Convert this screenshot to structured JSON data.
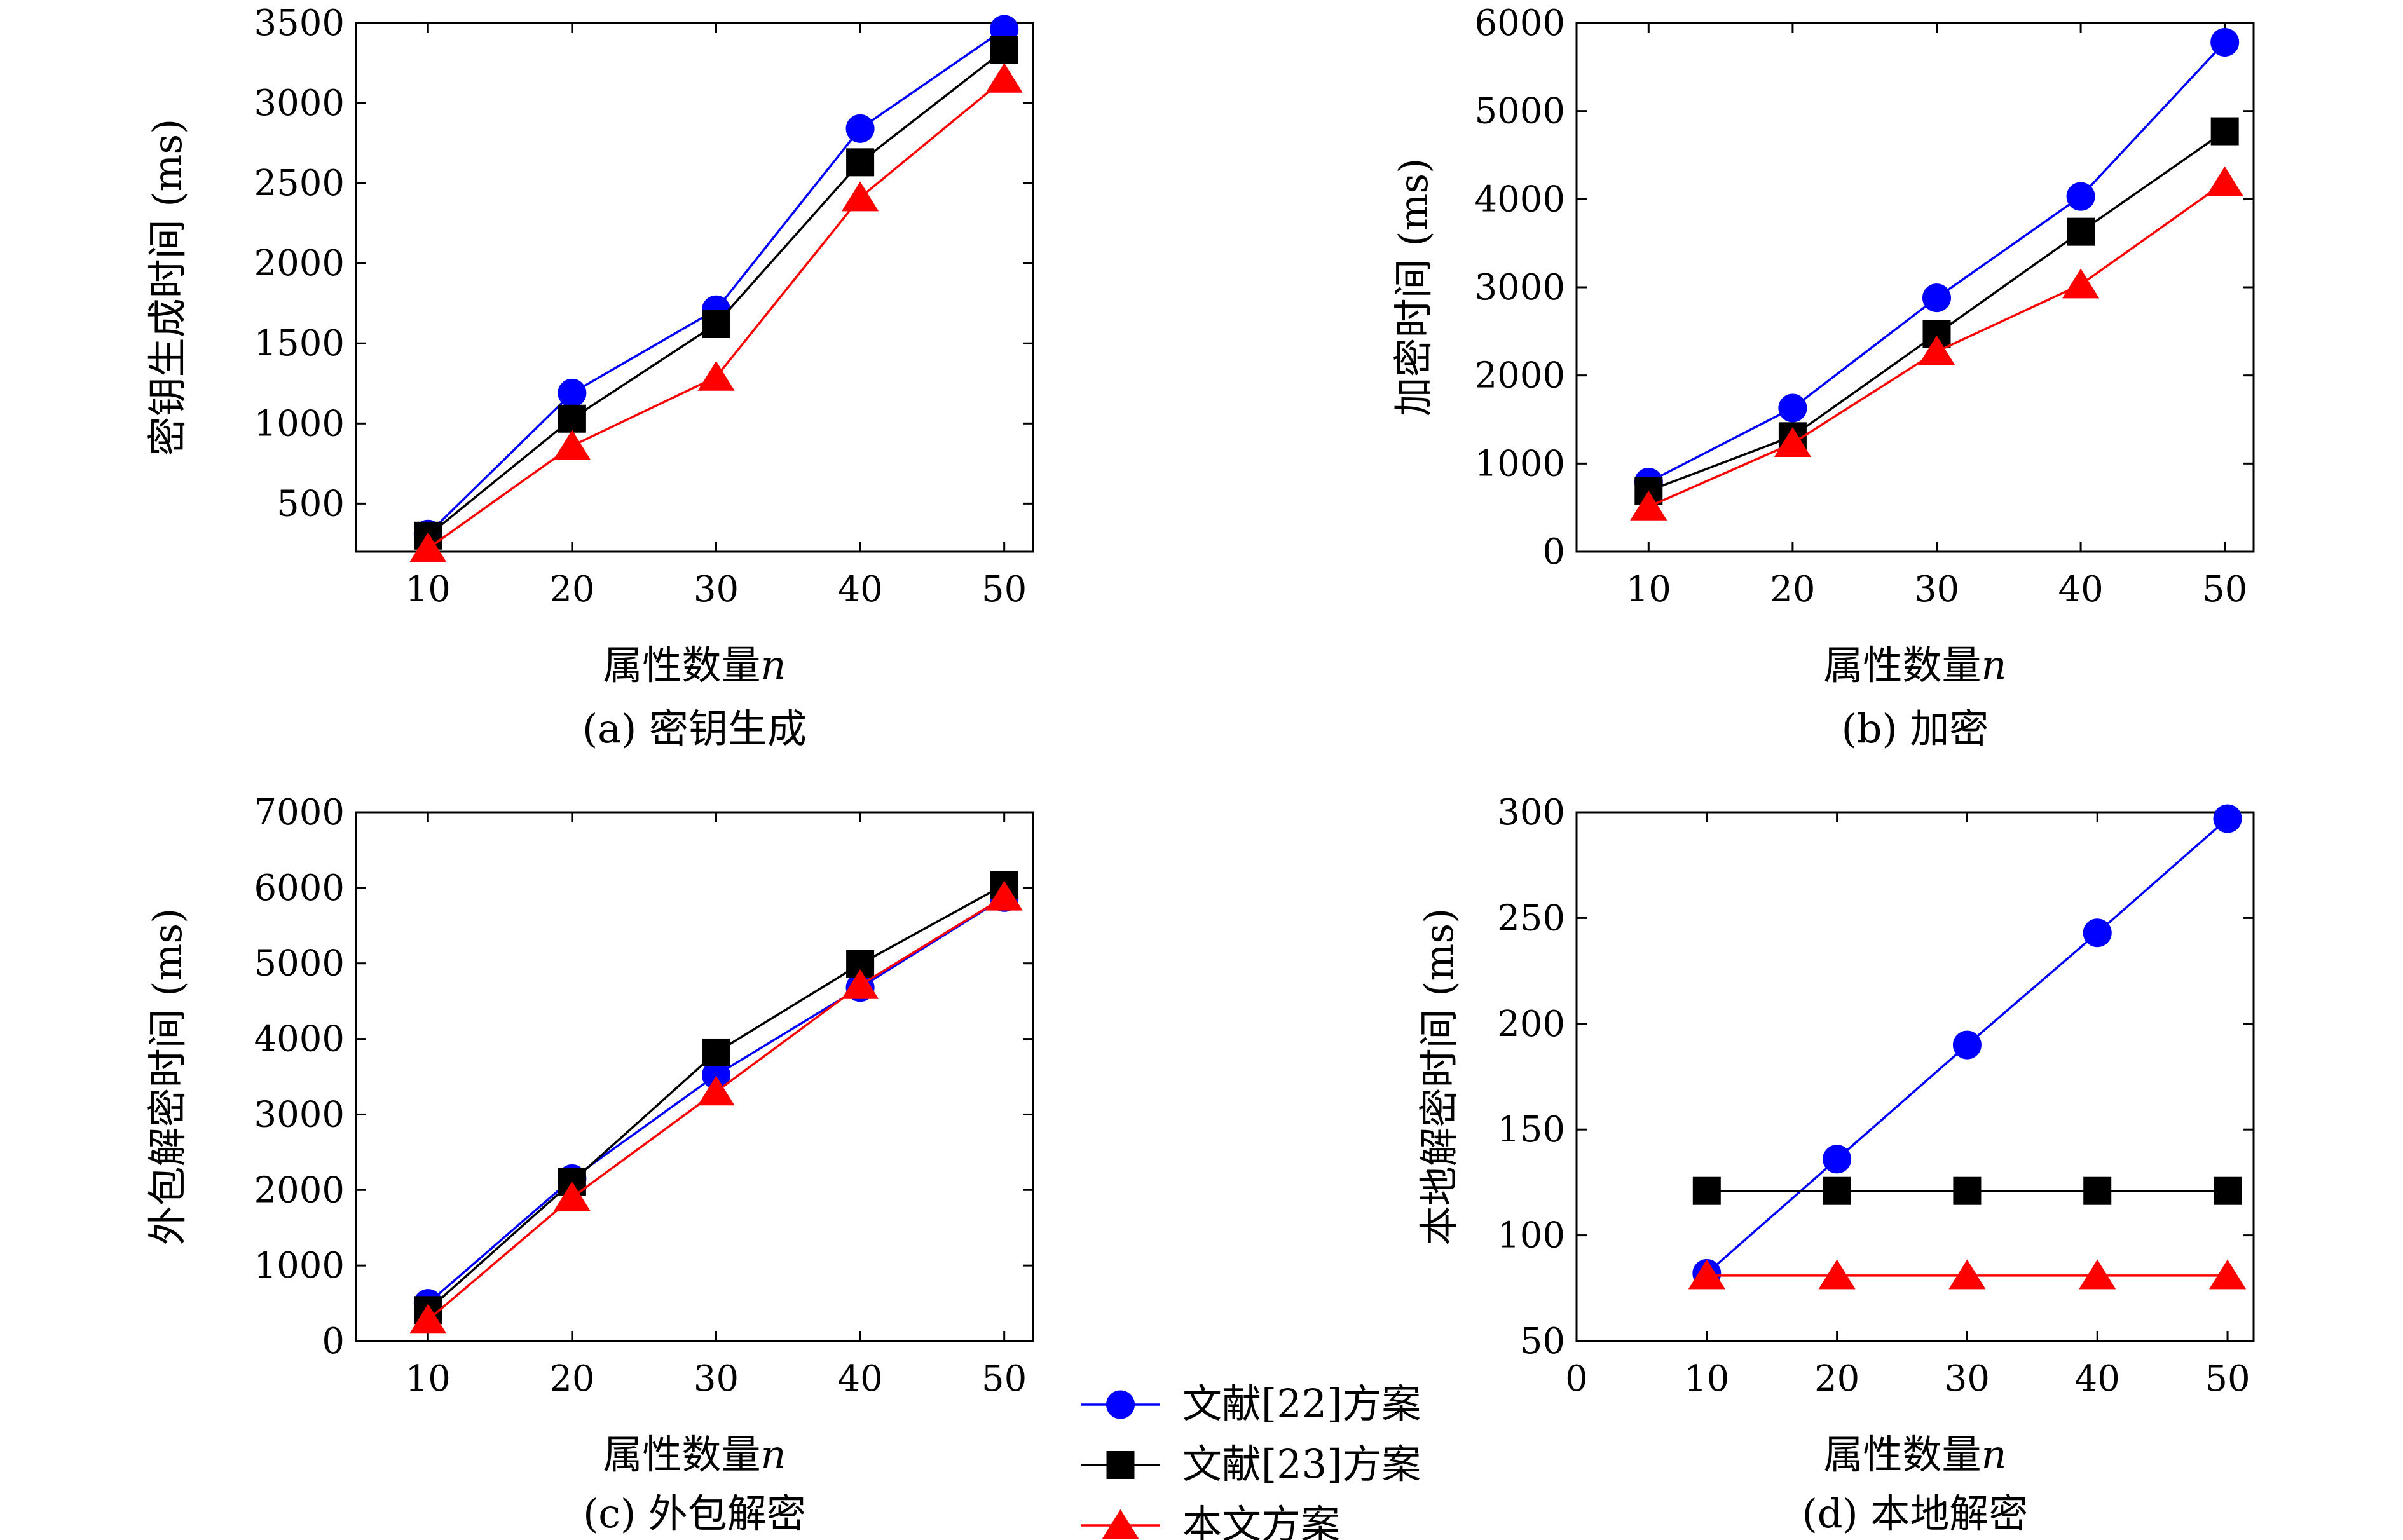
{
  "colors": {
    "series_blue": "#0000ff",
    "series_black": "#000000",
    "series_red": "#ff0000",
    "axis": "#000000"
  },
  "legend": {
    "items": [
      {
        "label": "文献[22]方案",
        "color": "#0000ff",
        "marker": "circle"
      },
      {
        "label": "文献[23]方案",
        "color": "#000000",
        "marker": "square"
      },
      {
        "label": "本文方案",
        "color": "#ff0000",
        "marker": "triangle"
      }
    ]
  },
  "chart_data": [
    {
      "type": "line",
      "caption": "(a) 密钥生成",
      "xlabel": "属性数量",
      "xlabel_var": "n",
      "ylabel": "密钥生成时间 (ms)",
      "xlim": [
        5,
        52
      ],
      "ylim": [
        200,
        3500
      ],
      "xticks": [
        10,
        20,
        30,
        40,
        50
      ],
      "yticks": [
        500,
        1000,
        1500,
        2000,
        2500,
        3000,
        3500
      ],
      "series": [
        {
          "name": "文献[22]方案",
          "x": [
            10,
            20,
            30,
            40,
            50
          ],
          "values": [
            310,
            1190,
            1710,
            2840,
            3460
          ]
        },
        {
          "name": "文献[23]方案",
          "x": [
            10,
            20,
            30,
            40,
            50
          ],
          "values": [
            300,
            1030,
            1620,
            2630,
            3330
          ]
        },
        {
          "name": "本文方案",
          "x": [
            10,
            20,
            30,
            40,
            50
          ],
          "values": [
            220,
            860,
            1290,
            2410,
            3150
          ]
        }
      ]
    },
    {
      "type": "line",
      "caption": "(b) 加密",
      "xlabel": "属性数量",
      "xlabel_var": "n",
      "ylabel": "加密时间 (ms)",
      "xlim": [
        5,
        52
      ],
      "ylim": [
        0,
        6000
      ],
      "xticks": [
        10,
        20,
        30,
        40,
        50
      ],
      "yticks": [
        0,
        1000,
        2000,
        3000,
        4000,
        5000,
        6000
      ],
      "series": [
        {
          "name": "文献[22]方案",
          "x": [
            10,
            20,
            30,
            40,
            50
          ],
          "values": [
            790,
            1630,
            2880,
            4030,
            5780
          ]
        },
        {
          "name": "文献[23]方案",
          "x": [
            10,
            20,
            30,
            40,
            50
          ],
          "values": [
            690,
            1310,
            2470,
            3630,
            4770
          ]
        },
        {
          "name": "本文方案",
          "x": [
            10,
            20,
            30,
            40,
            50
          ],
          "values": [
            510,
            1230,
            2270,
            3030,
            4190
          ]
        }
      ]
    },
    {
      "type": "line",
      "caption": "(c) 外包解密",
      "xlabel": "属性数量",
      "xlabel_var": "n",
      "ylabel": "外包解密时间 (ms)",
      "xlim": [
        5,
        52
      ],
      "ylim": [
        0,
        7000
      ],
      "xticks": [
        10,
        20,
        30,
        40,
        50
      ],
      "yticks": [
        0,
        1000,
        2000,
        3000,
        4000,
        5000,
        6000,
        7000
      ],
      "series": [
        {
          "name": "文献[22]方案",
          "x": [
            10,
            20,
            30,
            40,
            50
          ],
          "values": [
            500,
            2150,
            3520,
            4680,
            5870
          ]
        },
        {
          "name": "文献[23]方案",
          "x": [
            10,
            20,
            30,
            40,
            50
          ],
          "values": [
            410,
            2110,
            3820,
            4990,
            6040
          ]
        },
        {
          "name": "本文方案",
          "x": [
            10,
            20,
            30,
            40,
            50
          ],
          "values": [
            280,
            1900,
            3300,
            4710,
            5880
          ]
        }
      ]
    },
    {
      "type": "line",
      "caption": "(d) 本地解密",
      "xlabel": "属性数量",
      "xlabel_var": "n",
      "ylabel": "本地解密时间 (ms)",
      "xlim": [
        0,
        52
      ],
      "ylim": [
        50,
        300
      ],
      "xticks": [
        0,
        10,
        20,
        30,
        40,
        50
      ],
      "yticks": [
        50,
        100,
        150,
        200,
        250,
        300
      ],
      "series": [
        {
          "name": "文献[22]方案",
          "x": [
            10,
            20,
            30,
            40,
            50
          ],
          "values": [
            82,
            136,
            190,
            243,
            297
          ]
        },
        {
          "name": "文献[23]方案",
          "x": [
            10,
            20,
            30,
            40,
            50
          ],
          "values": [
            121,
            121,
            121,
            121,
            121
          ]
        },
        {
          "name": "本文方案",
          "x": [
            10,
            20,
            30,
            40,
            50
          ],
          "values": [
            81,
            81,
            81,
            81,
            81
          ]
        }
      ]
    }
  ]
}
